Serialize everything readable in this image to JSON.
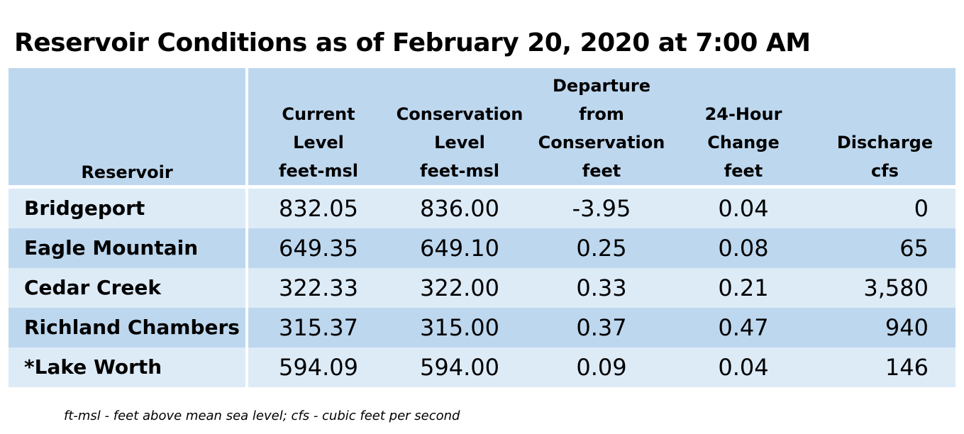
{
  "title": "Reservoir Conditions as of February 20, 2020 at 7:00 AM",
  "headers": {
    "reservoir": "Reservoir",
    "current": [
      "Current",
      "Level"
    ],
    "conservation": [
      "Conservation",
      "Level"
    ],
    "departure": [
      "Departure",
      "from",
      "Conservation"
    ],
    "change": [
      "24-Hour",
      "Change"
    ],
    "discharge": [
      "Discharge"
    ]
  },
  "units": [
    "feet-msl",
    "feet-msl",
    "feet",
    "feet",
    "cfs"
  ],
  "rows": [
    {
      "name": "Bridgeport",
      "current": "832.05",
      "conservation": "836.00",
      "departure": "-3.95",
      "change": "0.04",
      "discharge": "0"
    },
    {
      "name": "Eagle Mountain",
      "current": "649.35",
      "conservation": "649.10",
      "departure": "0.25",
      "change": "0.08",
      "discharge": "65"
    },
    {
      "name": "Cedar Creek",
      "current": "322.33",
      "conservation": "322.00",
      "departure": "0.33",
      "change": "0.21",
      "discharge": "3,580"
    },
    {
      "name": "Richland Chambers",
      "current": "315.37",
      "conservation": "315.00",
      "departure": "0.37",
      "change": "0.47",
      "discharge": "940"
    },
    {
      "name": "*Lake Worth",
      "current": "594.09",
      "conservation": "594.00",
      "departure": "0.09",
      "change": "0.04",
      "discharge": "146"
    }
  ],
  "footnote": "ft-msl - feet above mean sea level; cfs - cubic feet per second",
  "colors": {
    "header_bg": "#bdd7ee",
    "row_light": "#ddebf7",
    "row_dark": "#bdd7ee"
  }
}
